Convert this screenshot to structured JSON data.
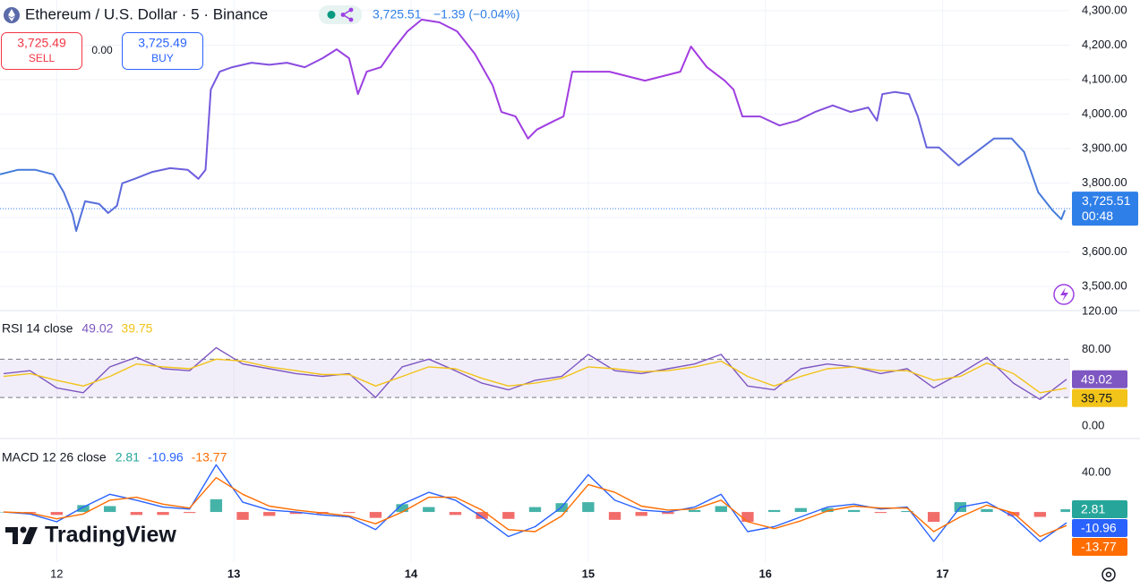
{
  "header": {
    "symbol": "Ethereum / U.S. Dollar · 5 · Binance",
    "price": "3,725.51",
    "change": "−1.39 (−0.04%)",
    "sell": {
      "price": "3,725.49",
      "label": "SELL"
    },
    "spread": "0.00",
    "buy": {
      "price": "3,725.49",
      "label": "BUY"
    }
  },
  "logo": "TradingView",
  "chart_data": [
    {
      "type": "line",
      "x": [
        11.68,
        11.78,
        11.88,
        11.98,
        12.04,
        12.09,
        12.11,
        12.16,
        12.24,
        12.29,
        12.34,
        12.37,
        12.44,
        12.54,
        12.64,
        12.74,
        12.8,
        12.84,
        12.87,
        12.92,
        12.99,
        13.1,
        13.2,
        13.3,
        13.4,
        13.5,
        13.58,
        13.65,
        13.7,
        13.75,
        13.83,
        13.9,
        13.98,
        14.06,
        14.16,
        14.26,
        14.36,
        14.46,
        14.51,
        14.59,
        14.66,
        14.71,
        14.81,
        14.86,
        14.91,
        15.02,
        15.12,
        15.22,
        15.32,
        15.42,
        15.52,
        15.58,
        15.67,
        15.77,
        15.82,
        15.87,
        15.97,
        16.08,
        16.18,
        16.28,
        16.38,
        16.48,
        16.58,
        16.63,
        16.66,
        16.73,
        16.81,
        16.86,
        16.91,
        16.98,
        17.09,
        17.19,
        17.29,
        17.39,
        17.46,
        17.54,
        17.62,
        17.67,
        17.69
      ],
      "values": [
        3825,
        3838,
        3838,
        3825,
        3773,
        3708,
        3661,
        3747,
        3739,
        3713,
        3734,
        3799,
        3812,
        3832,
        3843,
        3838,
        3812,
        3838,
        4071,
        4123,
        4136,
        4149,
        4143,
        4149,
        4136,
        4162,
        4188,
        4162,
        4058,
        4123,
        4136,
        4188,
        4240,
        4274,
        4266,
        4240,
        4175,
        4084,
        4006,
        3993,
        3929,
        3955,
        3981,
        3993,
        4123,
        4123,
        4123,
        4110,
        4097,
        4110,
        4123,
        4196,
        4136,
        4097,
        4071,
        3993,
        3993,
        3967,
        3981,
        4006,
        4025,
        4006,
        4019,
        3981,
        4058,
        4064,
        4058,
        3993,
        3903,
        3903,
        3851,
        3890,
        3929,
        3929,
        3890,
        3773,
        3721,
        3695,
        3721
      ],
      "gradient": [
        "#3f7fd9",
        "#9b3fe2",
        "#a53be0",
        "#3f7fd9"
      ],
      "xlim": [
        11.68,
        17.72
      ],
      "ylim": [
        3435,
        4331
      ],
      "yticks": [
        {
          "value": 3500,
          "label": "3,500.00"
        },
        {
          "value": 3600,
          "label": "3,600.00"
        },
        {
          "value": 3700,
          "label": "3,700.00"
        },
        {
          "value": 3800,
          "label": "3,800.00"
        },
        {
          "value": 3900,
          "label": "3,900.00"
        },
        {
          "value": 4000,
          "label": "4,000.00"
        },
        {
          "value": 4100,
          "label": "4,100.00"
        },
        {
          "value": 4200,
          "label": "4,200.00"
        },
        {
          "value": 4300,
          "label": "4,300.00"
        }
      ],
      "grid": true,
      "last_price": {
        "value": 3725.51,
        "label": "3,725.51"
      },
      "countdown": "00:48",
      "last_color": "#2f7fe8"
    },
    {
      "type": "line",
      "title": "RSI 14 close",
      "x": [
        11.7,
        11.85,
        12,
        12.15,
        12.3,
        12.45,
        12.6,
        12.75,
        12.9,
        13.05,
        13.2,
        13.35,
        13.5,
        13.65,
        13.8,
        13.95,
        14.1,
        14.25,
        14.4,
        14.55,
        14.7,
        14.85,
        15,
        15.15,
        15.3,
        15.45,
        15.6,
        15.75,
        15.9,
        16.05,
        16.2,
        16.35,
        16.5,
        16.65,
        16.8,
        16.95,
        17.1,
        17.25,
        17.4,
        17.55,
        17.7
      ],
      "series": [
        {
          "color": "#7e57c2",
          "values": [
            55,
            58,
            40,
            35,
            62,
            72,
            60,
            58,
            82,
            65,
            60,
            55,
            52,
            55,
            30,
            62,
            70,
            58,
            45,
            38,
            48,
            52,
            75,
            58,
            55,
            60,
            65,
            75,
            42,
            38,
            60,
            65,
            62,
            55,
            60,
            40,
            55,
            72,
            45,
            28,
            49.02
          ]
        },
        {
          "color": "#f2c318",
          "values": [
            52,
            55,
            48,
            42,
            52,
            65,
            62,
            60,
            70,
            68,
            62,
            58,
            54,
            54,
            42,
            52,
            62,
            60,
            50,
            42,
            45,
            50,
            62,
            60,
            57,
            58,
            62,
            68,
            52,
            42,
            52,
            60,
            62,
            58,
            58,
            48,
            52,
            66,
            55,
            35,
            39.75
          ]
        }
      ],
      "band": [
        30,
        70
      ],
      "band_color": "#7e57c2",
      "xlim": [
        11.68,
        17.72
      ],
      "ylim": [
        -11,
        118
      ],
      "yticks": [
        {
          "value": 0,
          "label": "0.00"
        },
        {
          "value": 80,
          "label": "80.00"
        },
        {
          "value": 120,
          "label": "120.00"
        }
      ]
    },
    {
      "type": "line",
      "title": "MACD 12 26 close",
      "x": [
        11.7,
        11.85,
        12,
        12.15,
        12.3,
        12.45,
        12.6,
        12.75,
        12.9,
        13.05,
        13.2,
        13.35,
        13.5,
        13.65,
        13.8,
        13.95,
        14.1,
        14.25,
        14.4,
        14.55,
        14.7,
        14.85,
        15,
        15.15,
        15.3,
        15.45,
        15.6,
        15.75,
        15.9,
        16.05,
        16.2,
        16.35,
        16.5,
        16.65,
        16.8,
        16.95,
        17.1,
        17.25,
        17.4,
        17.55,
        17.7
      ],
      "series": [
        {
          "style": "histogram",
          "colors": [
            "#26a69a",
            "#ef5350"
          ],
          "values": [
            0,
            -1,
            -3,
            7,
            6,
            -3,
            -3,
            -1,
            13,
            -8,
            -4,
            -2,
            -2,
            -1,
            -6,
            8,
            5,
            -3,
            -7,
            -7,
            5,
            9,
            10,
            -8,
            -4,
            -2,
            2,
            6,
            -10,
            2,
            4,
            4,
            2,
            -1,
            1,
            -10,
            10,
            3,
            -4,
            -5,
            2.81
          ]
        },
        {
          "color": "#2962ff",
          "values": [
            0,
            -2,
            -10,
            5,
            18,
            12,
            5,
            3,
            48,
            10,
            2,
            0,
            -3,
            -5,
            -18,
            8,
            20,
            12,
            -5,
            -25,
            -15,
            5,
            38,
            12,
            2,
            0,
            5,
            18,
            -20,
            -15,
            -5,
            5,
            8,
            3,
            5,
            -30,
            5,
            10,
            -5,
            -30,
            -10.96
          ]
        },
        {
          "color": "#ff6d00",
          "values": [
            0,
            -1,
            -7,
            -2,
            12,
            15,
            8,
            4,
            35,
            18,
            6,
            2,
            -1,
            -4,
            -12,
            0,
            15,
            15,
            2,
            -18,
            -20,
            -4,
            28,
            20,
            6,
            2,
            3,
            12,
            -10,
            -17,
            -9,
            1,
            6,
            4,
            4,
            -20,
            -5,
            7,
            -1,
            -25,
            -13.77
          ]
        }
      ],
      "xlim": [
        11.68,
        17.72
      ],
      "ylim": [
        -51,
        73
      ],
      "yticks": [
        {
          "value": 40,
          "label": "40.00"
        }
      ],
      "xticks": [
        12,
        13,
        14,
        15,
        16,
        17
      ]
    }
  ]
}
